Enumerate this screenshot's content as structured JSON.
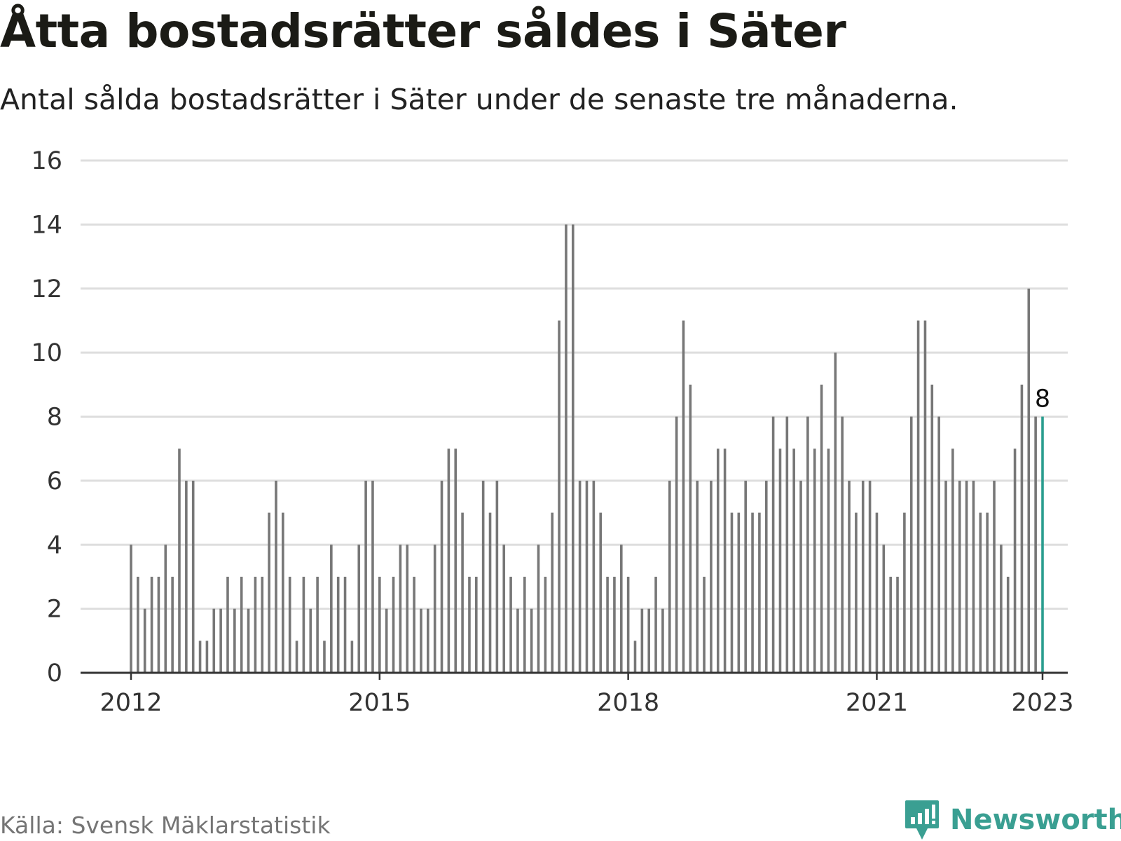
{
  "title": "Åtta bostadsrätter såldes i Säter",
  "subtitle": "Antal sålda bostadsrätter i Säter under de senaste tre månaderna.",
  "source": "Källa: Svensk Mäklarstatistik",
  "brand": {
    "name": "Newsworthy",
    "color": "#3a9f92"
  },
  "chart_data": {
    "type": "bar",
    "title": "",
    "xlabel": "",
    "ylabel": "",
    "ylim": [
      0,
      16
    ],
    "y_ticks": [
      0,
      2,
      4,
      6,
      8,
      10,
      12,
      14,
      16
    ],
    "x_ticks": [
      {
        "label": "2012",
        "index": 0
      },
      {
        "label": "2015",
        "index": 36
      },
      {
        "label": "2018",
        "index": 72
      },
      {
        "label": "2021",
        "index": 108
      },
      {
        "label": "2023",
        "index": 132
      }
    ],
    "grid": true,
    "bar_color": "#777777",
    "highlight_color": "#2a9d8f",
    "highlight_label": "8",
    "series": [
      {
        "values": [
          4,
          3,
          2,
          3,
          3,
          4,
          3,
          7,
          6,
          6,
          1,
          1,
          2,
          2,
          3,
          2,
          3,
          2,
          3,
          3,
          5,
          6,
          5,
          3,
          1,
          3,
          2,
          3,
          1,
          4,
          3,
          3,
          1,
          4,
          6,
          6,
          3,
          2,
          3,
          4,
          4,
          3,
          2,
          2,
          4,
          6,
          7,
          7,
          5,
          3,
          3,
          6,
          5,
          6,
          4,
          3,
          2,
          3,
          2,
          4,
          3,
          5,
          11,
          14,
          14,
          6,
          6,
          6,
          5,
          3,
          3,
          4,
          3,
          1,
          2,
          2,
          3,
          2,
          6,
          8,
          11,
          9,
          6,
          3,
          6,
          7,
          7,
          5,
          5,
          6,
          5,
          5,
          6,
          8,
          7,
          8,
          7,
          6,
          8,
          7,
          9,
          7,
          10,
          8,
          6,
          5,
          6,
          6,
          5,
          4,
          3,
          3,
          5,
          8,
          11,
          11,
          9,
          8,
          6,
          7,
          6,
          6,
          6,
          5,
          5,
          6,
          4,
          3,
          7,
          9,
          12,
          8,
          8
        ]
      }
    ]
  }
}
